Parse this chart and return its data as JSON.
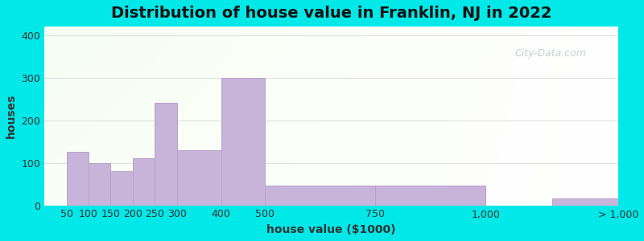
{
  "title": "Distribution of house value in Franklin, NJ in 2022",
  "xlabel": "house value ($1000)",
  "ylabel": "houses",
  "bin_edges": [
    0,
    50,
    100,
    150,
    200,
    250,
    300,
    400,
    500,
    750,
    1000,
    1150,
    1300
  ],
  "bin_values": [
    0,
    125,
    100,
    80,
    110,
    240,
    130,
    300,
    47,
    47,
    0,
    17
  ],
  "xtick_positions": [
    50,
    100,
    150,
    200,
    250,
    300,
    400,
    500,
    750,
    1000,
    1150,
    1300
  ],
  "xtick_labels": [
    "50",
    "100",
    "150",
    "200",
    "250",
    "300",
    "400",
    "500",
    "750",
    "1,000",
    "",
    "> 1,000"
  ],
  "bar_color": "#c8b4d8",
  "bar_edge_color": "#b8a0cc",
  "ylim": [
    0,
    420
  ],
  "yticks": [
    0,
    100,
    200,
    300,
    400
  ],
  "bg_outer": "#00e8e8",
  "grid_color": "#e0e0e0",
  "title_fontsize": 14,
  "axis_label_fontsize": 10,
  "tick_fontsize": 9,
  "watermark": "City-Data.com"
}
